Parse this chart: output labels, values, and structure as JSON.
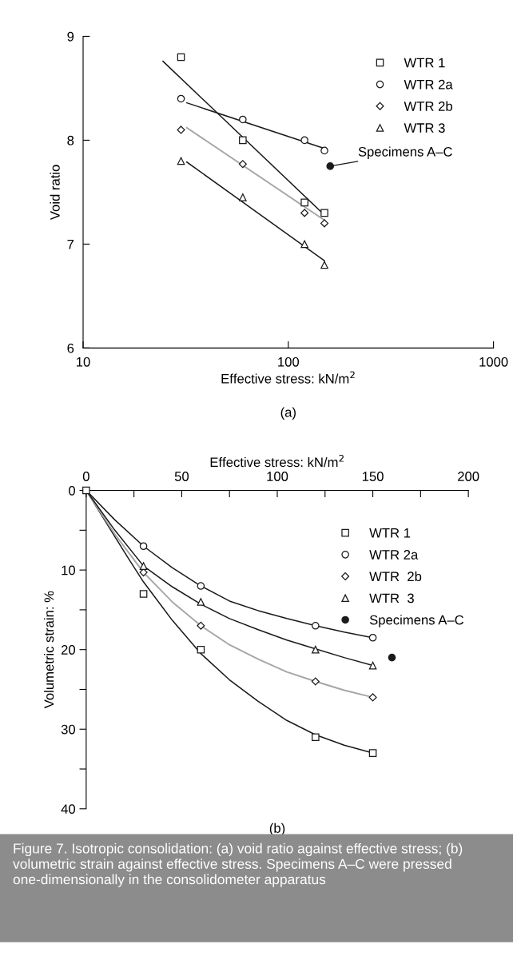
{
  "chart_data": [
    {
      "type": "scatter",
      "xlabel": "Effective stress: kN/m$^{2}$",
      "ylabel": "Void ratio",
      "log": "x",
      "xlim": [
        10,
        1000
      ],
      "xticks": [
        10,
        100,
        1000
      ],
      "ylim": [
        6,
        9
      ],
      "yticks": [
        6,
        7,
        8,
        9
      ],
      "legend": "top right",
      "grid": false,
      "annotations": [
        {
          "text": "Specimens A–C",
          "x": 160,
          "y": 7.75
        },
        "(a)"
      ],
      "series": [
        {
          "name": "WTR 1",
          "type": "scatter",
          "marker": "square",
          "color": "#1a1a1a",
          "x": [
            30,
            60,
            120,
            150
          ],
          "values": [
            8.8,
            8.0,
            7.4,
            7.3
          ]
        },
        {
          "name": "WTR 2a",
          "type": "scatter",
          "marker": "circle",
          "color": "#1a1a1a",
          "x": [
            30,
            60,
            120,
            150
          ],
          "values": [
            8.4,
            8.2,
            8.0,
            7.9
          ]
        },
        {
          "name": "WTR 2b",
          "type": "scatter",
          "marker": "diamond",
          "color": "#1a1a1a",
          "x": [
            30,
            60,
            120,
            150
          ],
          "values": [
            8.1,
            7.77,
            7.3,
            7.2
          ]
        },
        {
          "name": "WTR 3",
          "type": "scatter",
          "marker": "triangle",
          "color": "#1a1a1a",
          "x": [
            30,
            60,
            120,
            150
          ],
          "values": [
            7.8,
            7.45,
            7.0,
            6.8
          ]
        },
        {
          "type": "line",
          "color": "#1a1a1a",
          "x": [
            24.5,
            150
          ],
          "values": [
            8.76,
            7.28
          ]
        },
        {
          "type": "line",
          "color": "#1a1a1a",
          "x": [
            32,
            150
          ],
          "values": [
            8.36,
            7.92
          ]
        },
        {
          "type": "line",
          "color": "#a6a6a6",
          "x": [
            32,
            150
          ],
          "values": [
            8.12,
            7.23
          ]
        },
        {
          "type": "line",
          "color": "#1a1a1a",
          "x": [
            32,
            150
          ],
          "values": [
            7.79,
            6.84
          ]
        },
        {
          "marker": "circle",
          "color": "#1a1a1a",
          "x": [
            160
          ],
          "values": [
            7.75
          ]
        }
      ]
    },
    {
      "type": "scatter",
      "xlabel": "Effective stress: kN/m$^{2}$",
      "ylabel": "Volumetric strain: %",
      "xlim": [
        0,
        200
      ],
      "xticks": [
        0,
        {
          "value": 25,
          "label": null
        },
        50,
        {
          "value": 75,
          "label": null
        },
        100,
        {
          "value": 125,
          "label": null
        },
        150,
        {
          "value": 175,
          "label": null
        },
        200
      ],
      "ylim": [
        40,
        0
      ],
      "yticks": [
        0,
        {
          "value": 5,
          "label": null
        },
        10,
        {
          "value": 15,
          "label": null
        },
        20,
        {
          "value": 25,
          "label": null
        },
        30,
        {
          "value": 35,
          "label": null
        },
        40
      ],
      "legend": "top right",
      "grid": false,
      "annotations": [
        "(b)",
        "Figure 7. Isotropic consolidation: (a) void ratio against effective stress; (b) volumetric strain against effective stress. Specimens A–C were pressed one-dimensionally in the consolidometer apparatus"
      ],
      "series": [
        {
          "name": "WTR 1",
          "type": "scatter",
          "marker": "square",
          "color": "#1a1a1a",
          "x": [
            0,
            30,
            60,
            120,
            150
          ],
          "values": [
            0,
            13,
            20,
            31,
            33
          ]
        },
        {
          "name": "WTR 2a",
          "type": "scatter",
          "marker": "circle",
          "color": "#1a1a1a",
          "x": [
            30,
            60,
            120,
            150
          ],
          "values": [
            7,
            12,
            17,
            18.5
          ]
        },
        {
          "name": "WTR  2b",
          "type": "scatter",
          "marker": "diamond",
          "color": "#1a1a1a",
          "x": [
            30,
            60,
            120,
            150
          ],
          "values": [
            10.3,
            17,
            24,
            26
          ]
        },
        {
          "name": "WTR  3",
          "type": "scatter",
          "marker": "triangle",
          "color": "#1a1a1a",
          "x": [
            30,
            60,
            120,
            150
          ],
          "values": [
            9.5,
            14,
            20,
            22
          ]
        },
        {
          "type": "line",
          "color": "#1a1a1a",
          "x": [
            0,
            7.5,
            15,
            22.5,
            30,
            45,
            60,
            75,
            90,
            105,
            120,
            135,
            150
          ],
          "values": [
            0,
            2.9,
            5.8,
            8.7,
            11.5,
            16.3,
            20.5,
            23.8,
            26.5,
            28.9,
            30.7,
            32,
            33
          ]
        },
        {
          "type": "line",
          "color": "#1a1a1a",
          "x": [
            0,
            15,
            30,
            45,
            60,
            75,
            90,
            105,
            120,
            135,
            150
          ],
          "values": [
            0,
            3.7,
            7,
            9.7,
            12,
            13.9,
            15.1,
            16.1,
            17,
            17.8,
            18.5
          ]
        },
        {
          "type": "line",
          "color": "#a6a6a6",
          "x": [
            0,
            15,
            30,
            45,
            60,
            75,
            90,
            105,
            120,
            135,
            150
          ],
          "values": [
            0,
            5.5,
            10.3,
            14,
            17,
            19.4,
            21.2,
            22.8,
            24,
            25.1,
            26
          ]
        },
        {
          "type": "line",
          "color": "#1a1a1a",
          "x": [
            0,
            15,
            30,
            45,
            60,
            75,
            90,
            105,
            120,
            135,
            150
          ],
          "values": [
            0,
            5,
            9.5,
            12.1,
            14.3,
            16.1,
            17.5,
            18.8,
            19.9,
            21,
            22
          ]
        },
        {
          "name": "Specimens A–C",
          "marker": "circle",
          "color": "#1a1a1a",
          "x": [
            160
          ],
          "values": [
            21
          ]
        }
      ]
    }
  ]
}
